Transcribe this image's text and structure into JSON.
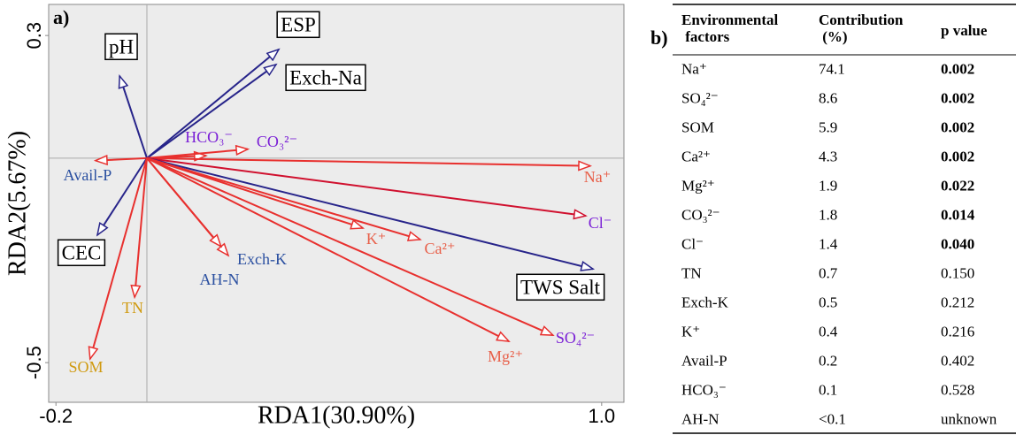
{
  "chart_data": {
    "type": "biplot",
    "panel_label": "a)",
    "xlabel": "RDA1(30.90%)",
    "ylabel": "RDA2(5.67%)",
    "xlim": [
      -0.216,
      1.049
    ],
    "ylim": [
      -0.597,
      0.376
    ],
    "xticks": [
      -0.2,
      {
        "value": 1,
        "label": "1.0"
      }
    ],
    "yticks": [
      0.3,
      -0.5
    ],
    "vectors": [
      {
        "name": "pH",
        "x": -0.06,
        "y": 0.201,
        "color": "#27248a",
        "label_color": "#000000",
        "boxed": true
      },
      {
        "name": "ESP",
        "x": 0.29,
        "y": 0.266,
        "color": "#27248a",
        "label_color": "#000000",
        "boxed": true
      },
      {
        "name": "Exch-Na",
        "x": 0.284,
        "y": 0.229,
        "color": "#27248a",
        "label_color": "#000000",
        "boxed": true
      },
      {
        "name": "HCO₃⁻",
        "x": 0.13,
        "y": 0.006,
        "color": "#e8302e",
        "label_color": "#7a1fd6",
        "boxed": false
      },
      {
        "name": "CO₃²⁻",
        "x": 0.222,
        "y": 0.022,
        "color": "#e8302e",
        "label_color": "#7a1fd6",
        "boxed": false
      },
      {
        "name": "Avail-P",
        "x": -0.113,
        "y": -0.006,
        "color": "#e8302e",
        "label_color": "#2a4fa0",
        "boxed": false
      },
      {
        "name": "Na⁺",
        "x": 0.975,
        "y": -0.019,
        "color": "#e8302e",
        "label_color": "#e8604a",
        "boxed": false
      },
      {
        "name": "Cl⁻",
        "x": 0.965,
        "y": -0.141,
        "color": "#d0102e",
        "label_color": "#7a1fd6",
        "boxed": false
      },
      {
        "name": "TWS Salt",
        "x": 0.981,
        "y": -0.271,
        "color": "#27248a",
        "label_color": "#000000",
        "boxed": true
      },
      {
        "name": "CEC",
        "x": -0.109,
        "y": -0.188,
        "color": "#27248a",
        "label_color": "#000000",
        "boxed": true
      },
      {
        "name": "TN",
        "x": -0.027,
        "y": -0.34,
        "color": "#e8302e",
        "label_color": "#d09a10",
        "boxed": false
      },
      {
        "name": "SOM",
        "x": -0.125,
        "y": -0.491,
        "color": "#e8302e",
        "label_color": "#d09a10",
        "boxed": false
      },
      {
        "name": "Exch-K",
        "x": 0.179,
        "y": -0.238,
        "color": "#e8302e",
        "label_color": "#2a4fa0",
        "boxed": false
      },
      {
        "name": "AH-N",
        "x": 0.163,
        "y": -0.216,
        "color": "#e8302e",
        "label_color": "#2a4fa0",
        "boxed": false
      },
      {
        "name": "K⁺",
        "x": 0.475,
        "y": -0.171,
        "color": "#e8302e",
        "label_color": "#e8604a",
        "boxed": false
      },
      {
        "name": "Ca²⁺",
        "x": 0.601,
        "y": -0.199,
        "color": "#e8302e",
        "label_color": "#e8604a",
        "boxed": false
      },
      {
        "name": "Mg²⁺",
        "x": 0.796,
        "y": -0.448,
        "color": "#e8302e",
        "label_color": "#e8604a",
        "boxed": false
      },
      {
        "name": "SO₄²⁻",
        "x": 0.893,
        "y": -0.433,
        "color": "#e8302e",
        "label_color": "#7a1fd6",
        "boxed": false
      }
    ]
  },
  "table": {
    "panel_label": "b)",
    "header": [
      "Environmental factors",
      "Contribution (%)",
      "p value"
    ],
    "rows": [
      {
        "cells": [
          "Na⁺",
          74.1,
          0.002
        ],
        "significant": true
      },
      {
        "cells": [
          "SO₄²⁻",
          8.6,
          0.002
        ],
        "significant": true
      },
      {
        "cells": [
          "SOM",
          5.9,
          0.002
        ],
        "significant": true
      },
      {
        "cells": [
          "Ca²⁺",
          4.3,
          0.002
        ],
        "significant": true
      },
      {
        "cells": [
          "Mg²⁺",
          1.9,
          0.022
        ],
        "significant": true
      },
      {
        "cells": [
          "CO₃²⁻",
          1.8,
          0.014
        ],
        "significant": true
      },
      {
        "cells": [
          "Cl⁻",
          1.4,
          "0.040"
        ],
        "significant": true
      },
      {
        "cells": [
          "TN",
          0.7,
          "0.150"
        ],
        "significant": false
      },
      {
        "cells": [
          "Exch-K",
          0.5,
          0.212
        ],
        "significant": false
      },
      {
        "cells": [
          "K⁺",
          0.4,
          0.216
        ],
        "significant": false
      },
      {
        "cells": [
          "Avail-P",
          0.2,
          0.402
        ],
        "significant": false
      },
      {
        "cells": [
          "HCO₃⁻",
          0.1,
          0.528
        ],
        "significant": false
      },
      {
        "cells": [
          "AH-N",
          "<0.1",
          "unknown"
        ],
        "significant": false
      }
    ]
  }
}
